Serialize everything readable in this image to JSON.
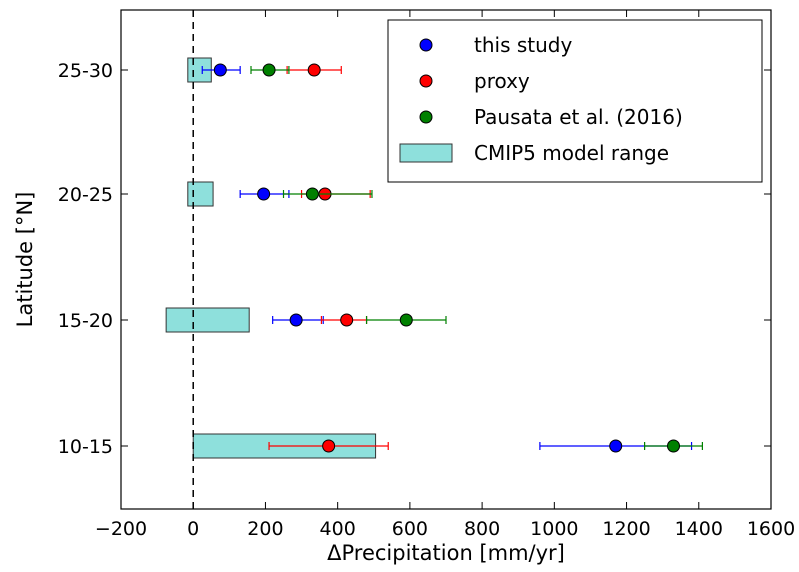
{
  "chart_data": {
    "type": "scatter",
    "title": "",
    "xlabel": "ΔPrecipitation [mm/yr]",
    "ylabel": "Latitude [°N]",
    "xlim": [
      -200,
      1600
    ],
    "xticks": [
      -200,
      0,
      200,
      400,
      600,
      800,
      1000,
      1200,
      1400,
      1600
    ],
    "xtick_labels": [
      "−200",
      "0",
      "200",
      "400",
      "600",
      "800",
      "1000",
      "1200",
      "1400",
      "1600"
    ],
    "categories": [
      "10-15",
      "15-20",
      "20-25",
      "25-30"
    ],
    "zero_line": 0,
    "grid": false,
    "legend_position": "top-right",
    "legend": {
      "series_order": [
        "this study",
        "proxy",
        "Pausata et al. (2016)"
      ],
      "range_label": "CMIP5 model range"
    },
    "range_bars": {
      "name": "CMIP5 model range",
      "color": "#8ee0dc",
      "ranges": [
        {
          "category": "10-15",
          "min": 0,
          "max": 505
        },
        {
          "category": "15-20",
          "min": -75,
          "max": 155
        },
        {
          "category": "20-25",
          "min": -15,
          "max": 55
        },
        {
          "category": "25-30",
          "min": -15,
          "max": 50
        }
      ]
    },
    "series": [
      {
        "name": "this study",
        "color": "#0000ff",
        "points": [
          {
            "category": "10-15",
            "value": 1170,
            "err_low": 960,
            "err_high": 1380
          },
          {
            "category": "15-20",
            "value": 285,
            "err_low": 220,
            "err_high": 360
          },
          {
            "category": "20-25",
            "value": 195,
            "err_low": 130,
            "err_high": 265
          },
          {
            "category": "25-30",
            "value": 75,
            "err_low": 25,
            "err_high": 130
          }
        ]
      },
      {
        "name": "proxy",
        "color": "#ff0000",
        "points": [
          {
            "category": "10-15",
            "value": 375,
            "err_low": 210,
            "err_high": 540
          },
          {
            "category": "15-20",
            "value": 425,
            "err_low": 355,
            "err_high": 480
          },
          {
            "category": "20-25",
            "value": 365,
            "err_low": 300,
            "err_high": 490
          },
          {
            "category": "25-30",
            "value": 335,
            "err_low": 260,
            "err_high": 410
          }
        ]
      },
      {
        "name": "Pausata et al. (2016)",
        "color": "#008000",
        "points": [
          {
            "category": "10-15",
            "value": 1330,
            "err_low": 1250,
            "err_high": 1410
          },
          {
            "category": "15-20",
            "value": 590,
            "err_low": 480,
            "err_high": 700
          },
          {
            "category": "20-25",
            "value": 330,
            "err_low": 250,
            "err_high": 495
          },
          {
            "category": "25-30",
            "value": 210,
            "err_low": 160,
            "err_high": 265
          }
        ]
      }
    ]
  }
}
